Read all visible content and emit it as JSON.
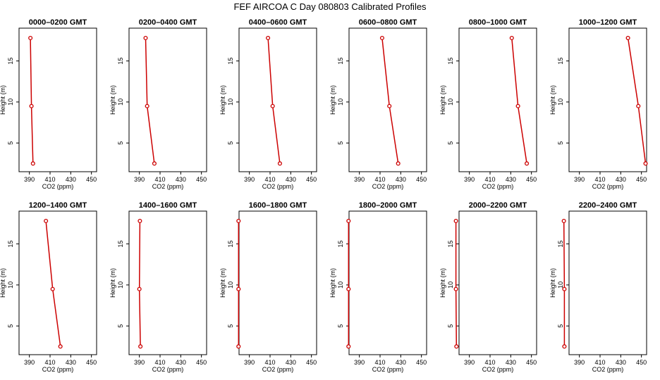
{
  "figure_title": "FEF AIRCOA C  Day 080803  Calibrated Profiles",
  "chart_data": {
    "type": "line",
    "xlabel": "CO2 (ppm)",
    "ylabel": "Height (m)",
    "xlim": [
      380,
      455
    ],
    "ylim": [
      1.5,
      19
    ],
    "xticks": [
      "390",
      "410",
      "430",
      "450"
    ],
    "yticks": [
      "5",
      "10",
      "15"
    ],
    "series_color": "#cc0000",
    "panels": [
      {
        "title": "0000–0200 GMT",
        "points": [
          {
            "co2": 391,
            "height": 17.8
          },
          {
            "co2": 392,
            "height": 9.5
          },
          {
            "co2": 393.5,
            "height": 2.5
          }
        ]
      },
      {
        "title": "0200–0400 GMT",
        "points": [
          {
            "co2": 396,
            "height": 17.8
          },
          {
            "co2": 397.5,
            "height": 9.5
          },
          {
            "co2": 404.5,
            "height": 2.5
          }
        ]
      },
      {
        "title": "0400–0600 GMT",
        "points": [
          {
            "co2": 408,
            "height": 17.8
          },
          {
            "co2": 412.5,
            "height": 9.5
          },
          {
            "co2": 419.5,
            "height": 2.5
          }
        ]
      },
      {
        "title": "0600–0800 GMT",
        "points": [
          {
            "co2": 412,
            "height": 17.8
          },
          {
            "co2": 419,
            "height": 9.5
          },
          {
            "co2": 427.5,
            "height": 2.5
          }
        ]
      },
      {
        "title": "0800–1000 GMT",
        "points": [
          {
            "co2": 431,
            "height": 17.8
          },
          {
            "co2": 437,
            "height": 9.5
          },
          {
            "co2": 445.5,
            "height": 2.5
          }
        ]
      },
      {
        "title": "1000–1200 GMT",
        "points": [
          {
            "co2": 437,
            "height": 17.8
          },
          {
            "co2": 447,
            "height": 9.5
          },
          {
            "co2": 454,
            "height": 2.5
          }
        ]
      },
      {
        "title": "1200–1400 GMT",
        "points": [
          {
            "co2": 406,
            "height": 17.8
          },
          {
            "co2": 412.5,
            "height": 9.5
          },
          {
            "co2": 420,
            "height": 2.5
          }
        ]
      },
      {
        "title": "1400–1600 GMT",
        "points": [
          {
            "co2": 390.5,
            "height": 17.8
          },
          {
            "co2": 390,
            "height": 9.5
          },
          {
            "co2": 391,
            "height": 2.5
          }
        ]
      },
      {
        "title": "1600–1800 GMT",
        "points": [
          {
            "co2": 379.5,
            "height": 17.8
          },
          {
            "co2": 379.5,
            "height": 9.5
          },
          {
            "co2": 379.5,
            "height": 2.5
          }
        ]
      },
      {
        "title": "1800–2000 GMT",
        "points": [
          {
            "co2": 379.5,
            "height": 17.8
          },
          {
            "co2": 379.5,
            "height": 9.5
          },
          {
            "co2": 379.5,
            "height": 2.5
          }
        ]
      },
      {
        "title": "2000–2200 GMT",
        "points": [
          {
            "co2": 377,
            "height": 17.8
          },
          {
            "co2": 377,
            "height": 9.5
          },
          {
            "co2": 377.5,
            "height": 2.5
          }
        ]
      },
      {
        "title": "2200–2400 GMT",
        "points": [
          {
            "co2": 375,
            "height": 17.8
          },
          {
            "co2": 375.5,
            "height": 9.5
          },
          {
            "co2": 375.5,
            "height": 2.5
          }
        ]
      }
    ]
  }
}
